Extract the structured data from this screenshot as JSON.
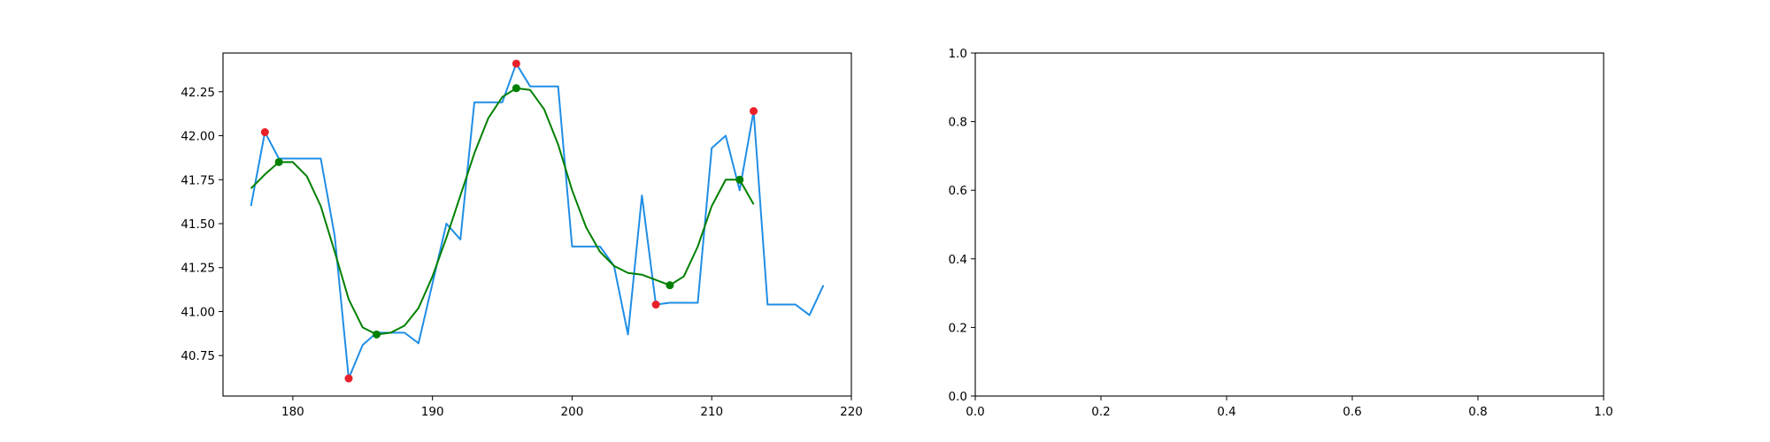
{
  "chart_data": [
    {
      "type": "line",
      "title": "",
      "xlabel": "",
      "ylabel": "",
      "xlim": [
        175,
        220
      ],
      "ylim": [
        40.52,
        42.47
      ],
      "xticks": [
        180,
        190,
        200,
        210,
        220
      ],
      "yticks": [
        40.75,
        41.0,
        41.25,
        41.5,
        41.75,
        42.0,
        42.25
      ],
      "xtick_labels": [
        "180",
        "190",
        "200",
        "210",
        "220"
      ],
      "ytick_labels": [
        "40.75",
        "41.00",
        "41.25",
        "41.50",
        "41.75",
        "42.00",
        "42.25"
      ],
      "grid": false,
      "series": [
        {
          "style": "line",
          "color": "#1f8ee6",
          "x": [
            177,
            178,
            179,
            180,
            181,
            182,
            183,
            184,
            185,
            186,
            187,
            188,
            189,
            190,
            191,
            192,
            193,
            194,
            195,
            196,
            197,
            198,
            199,
            200,
            201,
            202,
            203,
            204,
            205,
            206,
            207,
            208,
            209,
            210,
            211,
            212,
            213,
            214,
            215,
            216,
            217,
            218
          ],
          "y": [
            41.6,
            42.02,
            41.87,
            41.87,
            41.87,
            41.87,
            41.43,
            40.62,
            40.81,
            40.88,
            40.88,
            40.88,
            40.82,
            41.16,
            41.5,
            41.41,
            42.19,
            42.19,
            42.19,
            42.41,
            42.28,
            42.28,
            42.28,
            41.37,
            41.37,
            41.37,
            41.26,
            40.87,
            41.66,
            41.04,
            41.05,
            41.05,
            41.05,
            41.93,
            42.0,
            41.69,
            42.14,
            41.04,
            41.04,
            41.04,
            40.98,
            41.15
          ]
        },
        {
          "style": "line",
          "color": "#008000",
          "x": [
            177,
            178,
            179,
            180,
            181,
            182,
            183,
            184,
            185,
            186,
            187,
            188,
            189,
            190,
            191,
            192,
            193,
            194,
            195,
            196,
            197,
            198,
            199,
            200,
            201,
            202,
            203,
            204,
            205,
            206,
            207,
            208,
            209,
            210,
            211,
            212,
            213
          ],
          "y": [
            41.7,
            41.78,
            41.85,
            41.85,
            41.77,
            41.6,
            41.34,
            41.07,
            40.91,
            40.87,
            40.88,
            40.92,
            41.02,
            41.2,
            41.42,
            41.66,
            41.9,
            42.1,
            42.22,
            42.27,
            42.26,
            42.15,
            41.95,
            41.69,
            41.48,
            41.34,
            41.26,
            41.22,
            41.21,
            41.18,
            41.15,
            41.2,
            41.37,
            41.6,
            41.75,
            41.75,
            41.61
          ]
        },
        {
          "style": "scatter",
          "color": "#e8202a",
          "x": [
            178,
            184,
            196,
            206,
            213
          ],
          "y": [
            42.02,
            40.62,
            42.41,
            41.04,
            42.14
          ]
        },
        {
          "style": "scatter",
          "color": "#008000",
          "x": [
            179,
            186,
            196,
            207,
            212
          ],
          "y": [
            41.85,
            40.87,
            42.27,
            41.15,
            41.75
          ]
        }
      ]
    },
    {
      "type": "line",
      "title": "",
      "xlabel": "",
      "ylabel": "",
      "xlim": [
        0,
        1
      ],
      "ylim": [
        0,
        1
      ],
      "xticks": [
        0,
        0.2,
        0.4,
        0.6,
        0.8,
        1.0
      ],
      "yticks": [
        0,
        0.2,
        0.4,
        0.6,
        0.8,
        1.0
      ],
      "xtick_labels": [
        "0.0",
        "0.2",
        "0.4",
        "0.6",
        "0.8",
        "1.0"
      ],
      "ytick_labels": [
        "0.0",
        "0.2",
        "0.4",
        "0.6",
        "0.8",
        "1.0"
      ],
      "grid": false,
      "series": []
    }
  ]
}
